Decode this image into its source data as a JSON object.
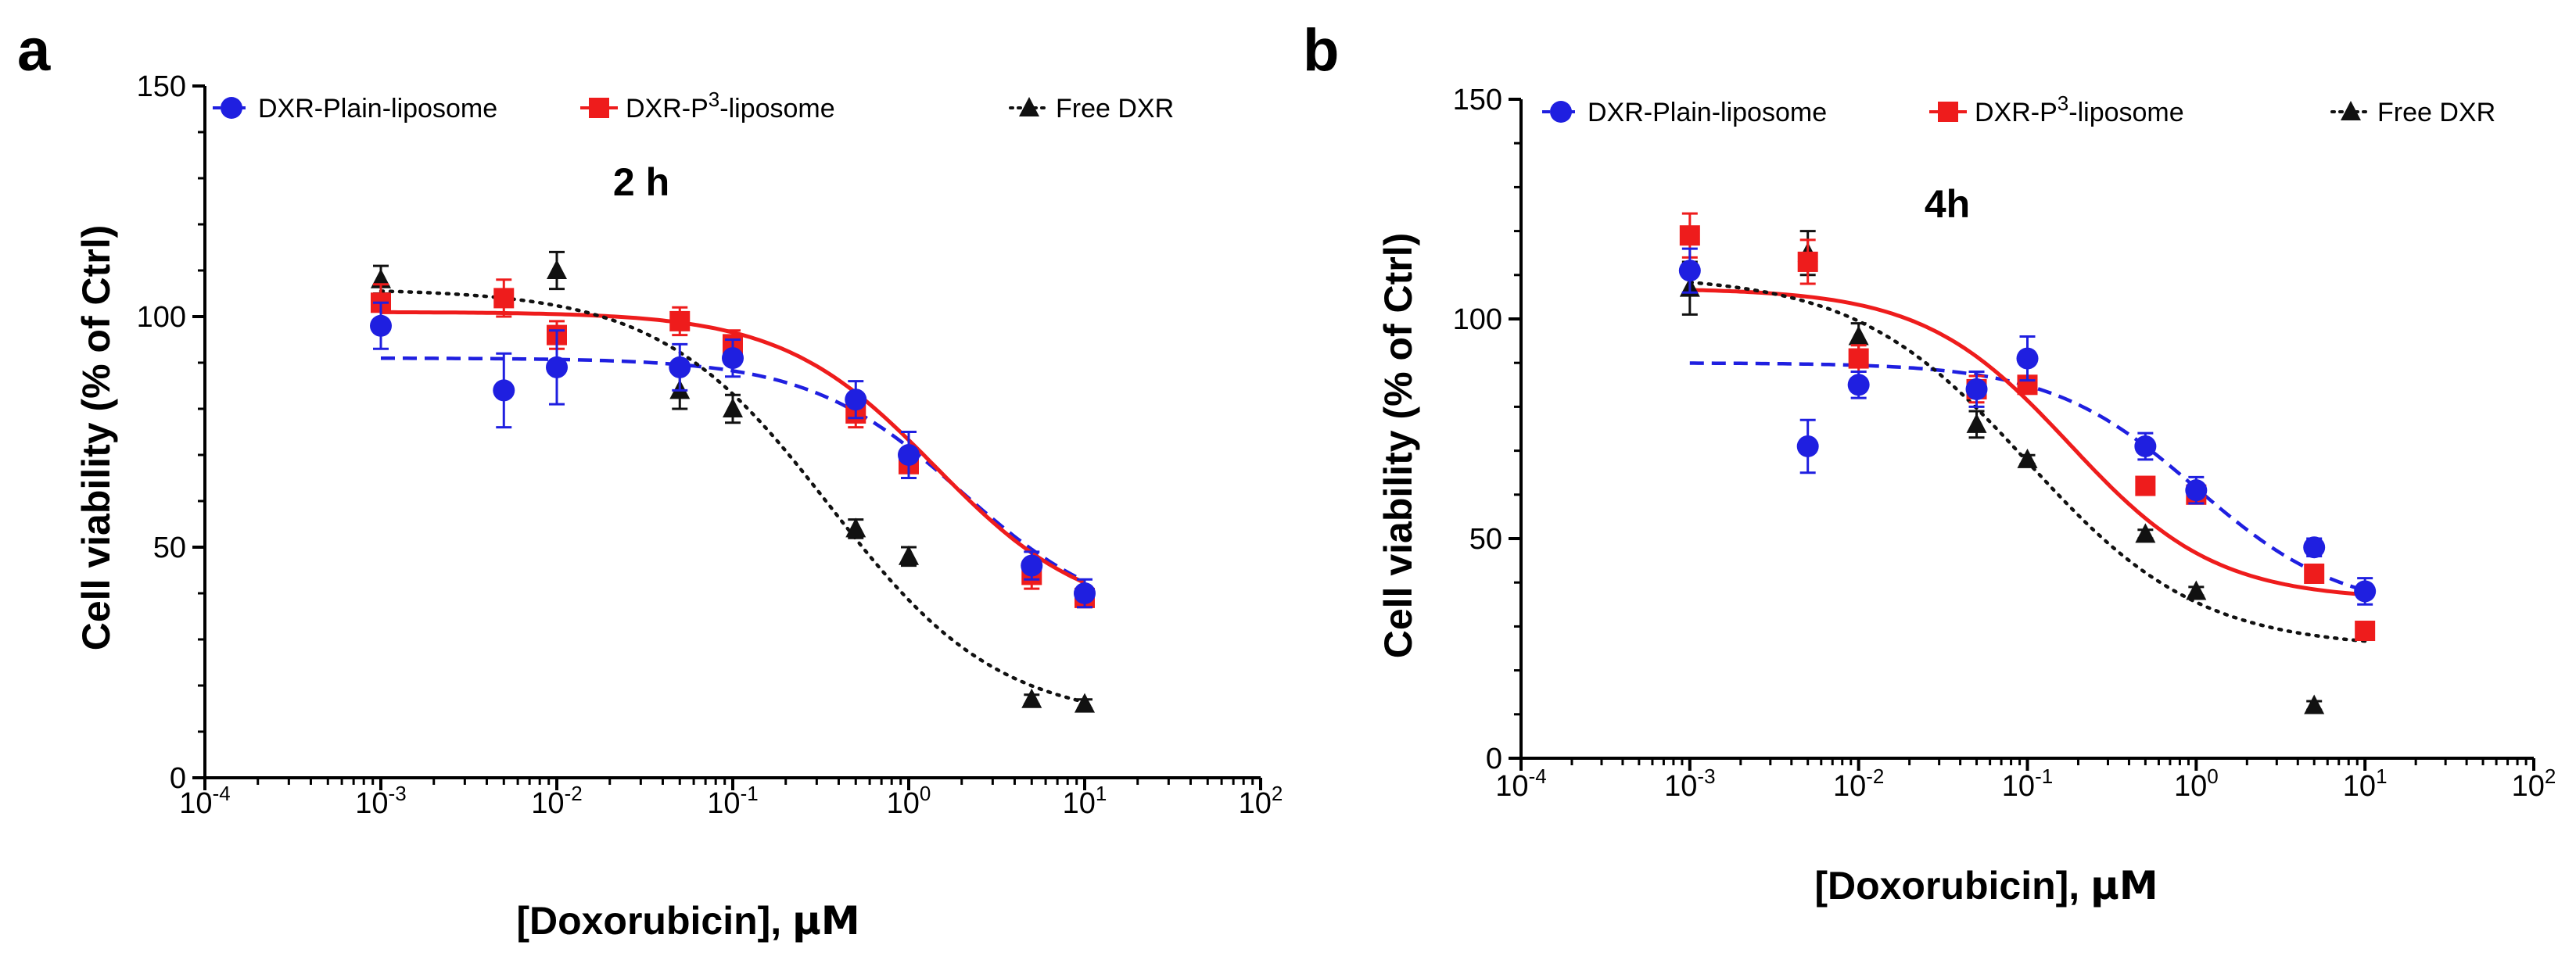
{
  "chart_data": [
    {
      "type": "scatter",
      "panel_label": "a",
      "time_label": "2 h",
      "xlabel_prefix": "[Doxorubicin], ",
      "xlabel_unit": "µM",
      "ylabel": "Cell viability (% of Ctrl)",
      "xscale": "log",
      "xlim": [
        0.0001,
        100
      ],
      "ylim": [
        0,
        150
      ],
      "yticks": [
        0,
        50,
        100,
        150
      ],
      "xticks": [
        {
          "value": 0.0001,
          "base": "10",
          "exp": "-4"
        },
        {
          "value": 0.001,
          "base": "10",
          "exp": "-3"
        },
        {
          "value": 0.01,
          "base": "10",
          "exp": "-2"
        },
        {
          "value": 0.1,
          "base": "10",
          "exp": "-1"
        },
        {
          "value": 1,
          "base": "10",
          "exp": "0"
        },
        {
          "value": 10,
          "base": "10",
          "exp": "1"
        },
        {
          "value": 100,
          "base": "10",
          "exp": "2"
        }
      ],
      "legend_position": "top",
      "series": [
        {
          "name": "DXR-Plain-liposome",
          "legend_text": "DXR-Plain-liposome",
          "legend_sup": "",
          "legend_suffix": "",
          "color": "#1f1fe0",
          "marker": "circle",
          "line": "dashed",
          "x": [
            0.001,
            0.005,
            0.01,
            0.05,
            0.1,
            0.5,
            1,
            5,
            10
          ],
          "y": [
            98,
            84,
            89,
            89,
            91,
            82,
            70,
            46,
            40
          ],
          "err": [
            5,
            8,
            8,
            5,
            4,
            4,
            5,
            3,
            3
          ],
          "fit": {
            "top": 91,
            "bottom": 33,
            "log_ec50": 0.3,
            "hill": 1.0
          }
        },
        {
          "name": "DXR-P3-liposome",
          "legend_text": "DXR-P",
          "legend_sup": "3",
          "legend_suffix": "-liposome",
          "color": "#ee1c1c",
          "marker": "square",
          "line": "solid",
          "x": [
            0.001,
            0.005,
            0.01,
            0.05,
            0.1,
            0.5,
            1,
            5,
            10
          ],
          "y": [
            103,
            104,
            96,
            99,
            94,
            79,
            68,
            44,
            39
          ],
          "err": [
            4,
            4,
            3,
            3,
            3,
            3,
            3,
            3,
            2
          ],
          "fit": {
            "top": 101,
            "bottom": 34,
            "log_ec50": 0.15,
            "hill": 1.0
          }
        },
        {
          "name": "Free DXR",
          "legend_text": "Free DXR",
          "legend_sup": "",
          "legend_suffix": "",
          "color": "#111111",
          "marker": "triangle",
          "line": "dotted",
          "x": [
            0.001,
            0.01,
            0.05,
            0.1,
            0.5,
            1,
            5,
            10
          ],
          "y": [
            108,
            110,
            84,
            80,
            54,
            48,
            17,
            16
          ],
          "err": [
            3,
            4,
            4,
            3,
            2,
            2,
            1,
            1
          ],
          "fit": {
            "top": 106,
            "bottom": 12,
            "log_ec50": -0.45,
            "hill": 0.9
          }
        }
      ]
    },
    {
      "type": "scatter",
      "panel_label": "b",
      "time_label": "4h",
      "xlabel_prefix": "[Doxorubicin], ",
      "xlabel_unit": "µM",
      "ylabel": "Cell viability (% of Ctrl)",
      "xscale": "log",
      "xlim": [
        0.0001,
        100
      ],
      "ylim": [
        0,
        150
      ],
      "yticks": [
        0,
        50,
        100,
        150
      ],
      "xticks": [
        {
          "value": 0.0001,
          "base": "10",
          "exp": "-4"
        },
        {
          "value": 0.001,
          "base": "10",
          "exp": "-3"
        },
        {
          "value": 0.01,
          "base": "10",
          "exp": "-2"
        },
        {
          "value": 0.1,
          "base": "10",
          "exp": "-1"
        },
        {
          "value": 1,
          "base": "10",
          "exp": "0"
        },
        {
          "value": 10,
          "base": "10",
          "exp": "1"
        },
        {
          "value": 100,
          "base": "10",
          "exp": "2"
        }
      ],
      "legend_position": "top",
      "series": [
        {
          "name": "DXR-Plain-liposome",
          "legend_text": "DXR-Plain-liposome",
          "legend_sup": "",
          "legend_suffix": "",
          "color": "#1f1fe0",
          "marker": "circle",
          "line": "dashed",
          "x": [
            0.001,
            0.005,
            0.01,
            0.05,
            0.1,
            0.5,
            1,
            5,
            10
          ],
          "y": [
            111,
            71,
            85,
            84,
            91,
            71,
            61,
            48,
            38
          ],
          "err": [
            5,
            6,
            3,
            4,
            5,
            3,
            3,
            2,
            3
          ],
          "fit": {
            "top": 90,
            "bottom": 33,
            "log_ec50": 0.0,
            "hill": 1.0
          }
        },
        {
          "name": "DXR-P3-liposome",
          "legend_text": "DXR-P",
          "legend_sup": "3",
          "legend_suffix": "-liposome",
          "color": "#ee1c1c",
          "marker": "square",
          "line": "solid",
          "x": [
            0.001,
            0.005,
            0.01,
            0.05,
            0.1,
            0.5,
            1,
            5,
            10
          ],
          "y": [
            119,
            113,
            91,
            84,
            85,
            62,
            60,
            42,
            29
          ],
          "err": [
            5,
            5,
            3,
            3,
            2,
            2,
            2,
            2,
            2
          ],
          "fit": {
            "top": 107,
            "bottom": 36,
            "log_ec50": -0.75,
            "hill": 1.0
          }
        },
        {
          "name": "Free DXR",
          "legend_text": "Free DXR",
          "legend_sup": "",
          "legend_suffix": "",
          "color": "#111111",
          "marker": "triangle",
          "line": "dotted",
          "x": [
            0.001,
            0.005,
            0.01,
            0.05,
            0.1,
            0.5,
            1,
            5
          ],
          "y": [
            107,
            115,
            96,
            76,
            68,
            51,
            38,
            12
          ],
          "err": [
            6,
            5,
            3,
            3,
            1,
            1,
            1,
            1
          ],
          "fit": {
            "top": 110,
            "bottom": 25,
            "log_ec50": -1.0,
            "hill": 0.85
          }
        }
      ]
    }
  ]
}
